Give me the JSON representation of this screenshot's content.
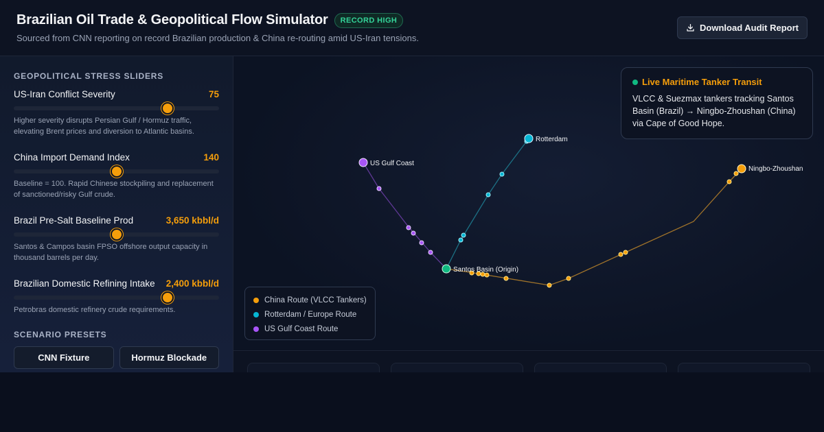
{
  "header": {
    "title": "Brazilian Oil Trade & Geopolitical Flow Simulator",
    "badge": "RECORD HIGH",
    "subtitle": "Sourced from CNN reporting on record Brazilian production & China re-routing amid US-Iran tensions.",
    "download_label": "Download Audit Report"
  },
  "sidebar": {
    "sliders_heading": "GEOPOLITICAL STRESS SLIDERS",
    "sliders": [
      {
        "name": "US-Iran Conflict Severity",
        "value": "75",
        "level": 0.75,
        "desc": "Higher severity disrupts Persian Gulf / Hormuz traffic, elevating Brent prices and diversion to Atlantic basins."
      },
      {
        "name": "China Import Demand Index",
        "value": "140",
        "level": 0.5,
        "desc": "Baseline = 100. Rapid Chinese stockpiling and replacement of sanctioned/risky Gulf crude."
      },
      {
        "name": "Brazil Pre-Salt Baseline Prod",
        "value": "3,650 kbbl/d",
        "level": 0.5,
        "desc": "Santos & Campos basin FPSO offshore output capacity in thousand barrels per day."
      },
      {
        "name": "Brazilian Domestic Refining Intake",
        "value": "2,400 kbbl/d",
        "level": 0.75,
        "desc": "Petrobras domestic refinery crude requirements."
      }
    ],
    "presets_heading": "SCENARIO PRESETS",
    "presets": [
      "CNN Fixture",
      "Hormuz Blockade"
    ]
  },
  "map": {
    "transit": {
      "title": "Live Maritime Tanker Transit",
      "body": "VLCC & Suezmax tankers tracking Santos Basin (Brazil) → Ningbo-Zhoushan (China) via Cape of Good Hope."
    },
    "ports": {
      "origin": "Santos Basin (Origin)",
      "rotterdam": "Rotterdam",
      "us_gulf": "US Gulf Coast",
      "ningbo": "Ningbo-Zhoushan"
    },
    "legend": [
      {
        "label": "China Route (VLCC Tankers)",
        "color": "#f59e0b"
      },
      {
        "label": "Rotterdam / Europe Route",
        "color": "#06b6d4"
      },
      {
        "label": "US Gulf Coast Route",
        "color": "#a855f7"
      }
    ]
  },
  "colors": {
    "accent": "#f59e0b",
    "live": "#10b981",
    "europe": "#06b6d4",
    "usgulf": "#a855f7"
  }
}
